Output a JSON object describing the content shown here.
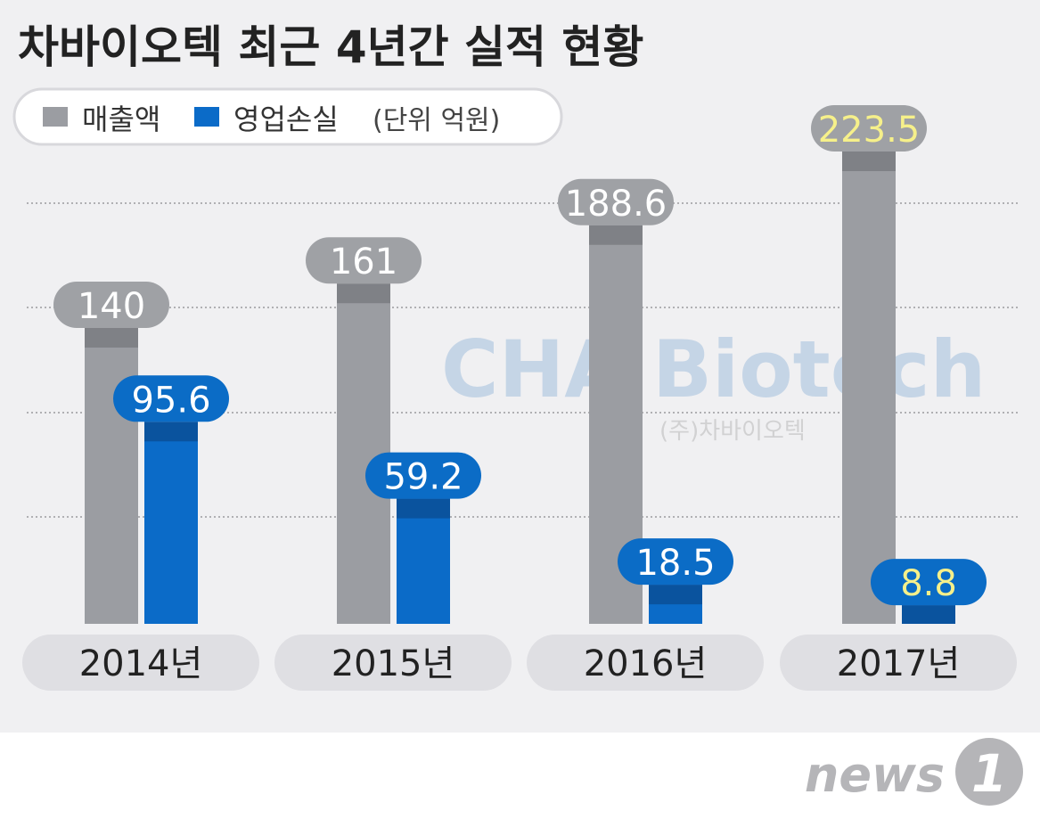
{
  "chart_data": {
    "type": "bar",
    "title": "차바이오텍 최근 4년간 실적 현황",
    "unit_note": "(단위 억원)",
    "categories": [
      "2014년",
      "2015년",
      "2016년",
      "2017년"
    ],
    "series": [
      {
        "name": "매출액",
        "values": [
          140,
          161,
          188.6,
          223.5
        ],
        "labels": [
          "140",
          "161",
          "188.6",
          "223.5"
        ],
        "color": "#9b9da2"
      },
      {
        "name": "영업손실",
        "values": [
          95.6,
          59.2,
          18.5,
          8.8
        ],
        "labels": [
          "95.6",
          "59.2",
          "18.5",
          "8.8"
        ],
        "color": "#0b6bc8"
      }
    ],
    "highlight_color": "#f6f08a",
    "ylim": [
      0,
      223.5
    ],
    "grid": true,
    "legend_position": "top-left"
  },
  "watermark": {
    "main": "CHA Biotech",
    "sub": "(주)차바이오텍"
  },
  "footer": {
    "logo": "news1"
  }
}
